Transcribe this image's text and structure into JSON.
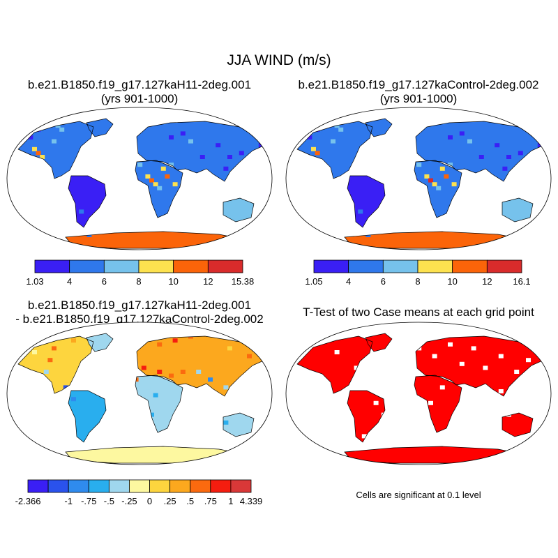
{
  "figure": {
    "title": "JJA WIND (m/s)"
  },
  "panels": [
    {
      "title_line1": "b.e21.B1850.f19_g17.127kaH11-2deg.001",
      "title_line2": "(yrs 901-1000)",
      "colorbar": {
        "colors": [
          "#3a1ff5",
          "#2f78ec",
          "#76c2ec",
          "#fde24f",
          "#fb6409",
          "#d92b2b"
        ],
        "labels": [
          "1.03",
          "4",
          "6",
          "8",
          "10",
          "12",
          "15.38"
        ]
      }
    },
    {
      "title_line1": "b.e21.B1850.f19_g17.127kaControl-2deg.002",
      "title_line2": "(yrs 901-1000)",
      "colorbar": {
        "colors": [
          "#3a1ff5",
          "#2f78ec",
          "#76c2ec",
          "#fde24f",
          "#fb6409",
          "#d92b2b"
        ],
        "labels": [
          "1.05",
          "4",
          "6",
          "8",
          "10",
          "12",
          "16.1"
        ]
      }
    },
    {
      "title_line1": "b.e21.B1850.f19_g17.127kaH11-2deg.001",
      "title_line2": "- b.e21.B1850.f19_g17.127kaControl-2deg.002",
      "colorbar": {
        "colors": [
          "#3a1ff5",
          "#2a52ec",
          "#2f8bee",
          "#29aeee",
          "#9fd7ee",
          "#fdf8a0",
          "#fdd53e",
          "#fca81e",
          "#fb6a0f",
          "#f51d0f",
          "#d93838"
        ],
        "labels": [
          "-2.366",
          "",
          "-1",
          "-.75",
          "-.5",
          "-.25",
          "0",
          ".25",
          ".5",
          ".75",
          "1",
          "4.339"
        ]
      }
    },
    {
      "title_line1": "T-Test of two Case means at each grid point",
      "note": "Cells are significant at 0.1 level"
    }
  ]
}
